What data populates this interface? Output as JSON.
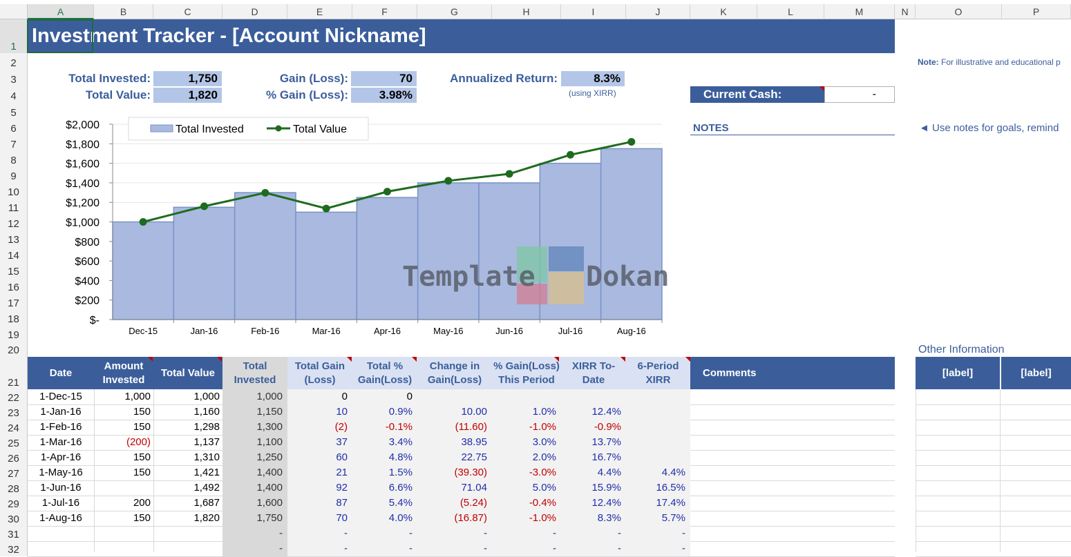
{
  "columns": [
    "A",
    "B",
    "C",
    "D",
    "E",
    "F",
    "G",
    "H",
    "I",
    "J",
    "K",
    "L",
    "M",
    "N",
    "O",
    "P"
  ],
  "rows": [
    "1",
    "2",
    "3",
    "4",
    "5",
    "6",
    "7",
    "8",
    "9",
    "10",
    "11",
    "12",
    "13",
    "14",
    "15",
    "16",
    "17",
    "18",
    "19",
    "20",
    "21",
    "22",
    "23",
    "24",
    "25",
    "26",
    "27",
    "28",
    "29",
    "30",
    "31",
    "32"
  ],
  "title": "Investment Tracker - [Account Nickname]",
  "summary": {
    "total_invested_label": "Total Invested:",
    "total_invested_value": "1,750",
    "total_value_label": "Total Value:",
    "total_value_value": "1,820",
    "gain_label": "Gain (Loss):",
    "gain_value": "70",
    "pct_gain_label": "% Gain (Loss):",
    "pct_gain_value": "3.98%",
    "annualized_label": "Annualized Return:",
    "annualized_value": "8.3%",
    "annualized_note": "(using XIRR)",
    "current_cash_label": "Current Cash:",
    "current_cash_value": "-"
  },
  "notes": {
    "header": "NOTES",
    "side_note_bold": "Note:",
    "side_note_text": " For illustrative and educational p",
    "tip": "◄ Use notes for goals, remind",
    "other_info": "Other Information"
  },
  "chart_data": {
    "type": "bar",
    "categories": [
      "Dec-15",
      "Jan-16",
      "Feb-16",
      "Mar-16",
      "Apr-16",
      "May-16",
      "Jun-16",
      "Jul-16",
      "Aug-16"
    ],
    "series": [
      {
        "name": "Total Invested",
        "type": "bar",
        "values": [
          1000,
          1150,
          1300,
          1100,
          1250,
          1400,
          1400,
          1600,
          1750
        ]
      },
      {
        "name": "Total Value",
        "type": "line",
        "values": [
          1000,
          1160,
          1298,
          1137,
          1310,
          1421,
          1492,
          1687,
          1820
        ]
      }
    ],
    "y_ticks": [
      "$-",
      "$200",
      "$400",
      "$600",
      "$800",
      "$1,000",
      "$1,200",
      "$1,400",
      "$1,600",
      "$1,800",
      "$2,000"
    ],
    "ylim": [
      0,
      2000
    ],
    "legend_position": "top",
    "colors": {
      "bar_fill": "#a9b9df",
      "bar_stroke": "#7a93c8",
      "line": "#1e6b1e"
    }
  },
  "watermark": {
    "left": "Template",
    "right": "Dokan"
  },
  "table": {
    "headers": [
      "Date",
      "Amount Invested",
      "Total Value",
      "Total Invested",
      "Total Gain (Loss)",
      "Total % Gain(Loss)",
      "Change in Gain(Loss)",
      "% Gain(Loss) This Period",
      "XIRR To-Date",
      "6-Period XIRR",
      "Comments"
    ],
    "side_headers": [
      "[label]",
      "[label]"
    ],
    "rows": [
      [
        "1-Dec-15",
        "1,000",
        "1,000",
        "1,000",
        "0",
        "0",
        "",
        "",
        "",
        "",
        ""
      ],
      [
        "1-Jan-16",
        "150",
        "1,160",
        "1,150",
        "10",
        "0.9%",
        "10.00",
        "1.0%",
        "12.4%",
        "",
        ""
      ],
      [
        "1-Feb-16",
        "150",
        "1,298",
        "1,300",
        "(2)",
        "-0.1%",
        "(11.60)",
        "-1.0%",
        "-0.9%",
        "",
        ""
      ],
      [
        "1-Mar-16",
        "(200)",
        "1,137",
        "1,100",
        "37",
        "3.4%",
        "38.95",
        "3.0%",
        "13.7%",
        "",
        ""
      ],
      [
        "1-Apr-16",
        "150",
        "1,310",
        "1,250",
        "60",
        "4.8%",
        "22.75",
        "2.0%",
        "16.7%",
        "",
        ""
      ],
      [
        "1-May-16",
        "150",
        "1,421",
        "1,400",
        "21",
        "1.5%",
        "(39.30)",
        "-3.0%",
        "4.4%",
        "4.4%",
        ""
      ],
      [
        "1-Jun-16",
        "",
        "1,492",
        "1,400",
        "92",
        "6.6%",
        "71.04",
        "5.0%",
        "15.9%",
        "16.5%",
        ""
      ],
      [
        "1-Jul-16",
        "200",
        "1,687",
        "1,600",
        "87",
        "5.4%",
        "(5.24)",
        "-0.4%",
        "12.4%",
        "17.4%",
        ""
      ],
      [
        "1-Aug-16",
        "150",
        "1,820",
        "1,750",
        "70",
        "4.0%",
        "(16.87)",
        "-1.0%",
        "8.3%",
        "5.7%",
        ""
      ],
      [
        "",
        "",
        "",
        "-",
        "-",
        "-",
        "-",
        "-",
        "-",
        "-",
        ""
      ],
      [
        "",
        "",
        "",
        "-",
        "-",
        "-",
        "-",
        "-",
        "-",
        "-",
        ""
      ]
    ]
  }
}
